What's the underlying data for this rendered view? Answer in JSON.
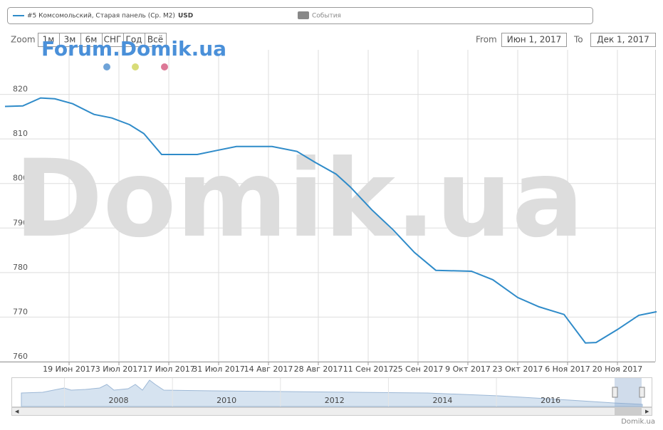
{
  "chart_data": {
    "type": "line",
    "series": [
      {
        "name": "#5 Комсомольский, Старая панель (Ср. М2)",
        "unit": "USD",
        "color": "#2f8bc9",
        "values": [
          817.3,
          817.4,
          819.2,
          819.0,
          817.9,
          815.5,
          814.7,
          813.2,
          811.2,
          806.5,
          806.5,
          807.5,
          808.3,
          808.3,
          807.2,
          804.8,
          802.1,
          799.2,
          794.1,
          789.6,
          784.5,
          780.5,
          780.3,
          778.4,
          774.4,
          772.3,
          770.6,
          764.2,
          764.3,
          767.2,
          770.4,
          771.2
        ]
      }
    ],
    "x": [
      "2017-06-01",
      "2017-06-06",
      "2017-06-11",
      "2017-06-15",
      "2017-06-20",
      "2017-06-26",
      "2017-07-01",
      "2017-07-06",
      "2017-07-10",
      "2017-07-15",
      "2017-07-25",
      "2017-07-31",
      "2017-08-05",
      "2017-08-15",
      "2017-08-22",
      "2017-08-27",
      "2017-09-02",
      "2017-09-06",
      "2017-09-12",
      "2017-09-18",
      "2017-09-24",
      "2017-09-30",
      "2017-10-10",
      "2017-10-16",
      "2017-10-23",
      "2017-10-29",
      "2017-11-05",
      "2017-11-11",
      "2017-11-14",
      "2017-11-20",
      "2017-11-26",
      "2017-12-01"
    ],
    "xlim": [
      "2017-06-01",
      "2017-12-01"
    ],
    "xticks": [
      {
        "value": "2017-06-19",
        "label": "19 Июн 2017"
      },
      {
        "value": "2017-07-03",
        "label": "3 Июл 2017"
      },
      {
        "value": "2017-07-17",
        "label": "17 Июл 2017"
      },
      {
        "value": "2017-07-31",
        "label": "31 Июл 2017"
      },
      {
        "value": "2017-08-14",
        "label": "14 Авг 2017"
      },
      {
        "value": "2017-08-28",
        "label": "28 Авг 2017"
      },
      {
        "value": "2017-09-11",
        "label": "11 Сен 2017"
      },
      {
        "value": "2017-09-25",
        "label": "25 Сен 2017"
      },
      {
        "value": "2017-10-09",
        "label": "9 Окт 2017"
      },
      {
        "value": "2017-10-23",
        "label": "23 Окт 2017"
      },
      {
        "value": "2017-11-06",
        "label": "6 Ноя 2017"
      },
      {
        "value": "2017-11-20",
        "label": "20 Ноя 2017"
      }
    ],
    "ylim": [
      760,
      830
    ],
    "yticks": [
      760,
      770,
      780,
      790,
      800,
      810,
      820
    ],
    "grid": true,
    "events_label": "События",
    "watermark": "Domik.ua",
    "forum_watermark": "Forum.Domik.ua"
  },
  "range_selector": {
    "zoom_label": "Zoom",
    "buttons": [
      "1м",
      "3м",
      "6м",
      "СНГ",
      "Год",
      "Всё"
    ],
    "from_label": "From",
    "from": "Июн 1, 2017",
    "to_label": "To",
    "to": "Дек 1, 2017"
  },
  "navigator": {
    "xlim": [
      2006.2,
      2017.7
    ],
    "xticks": [
      2008,
      2010,
      2012,
      2014,
      2016
    ]
  },
  "credits": "Domik.ua"
}
